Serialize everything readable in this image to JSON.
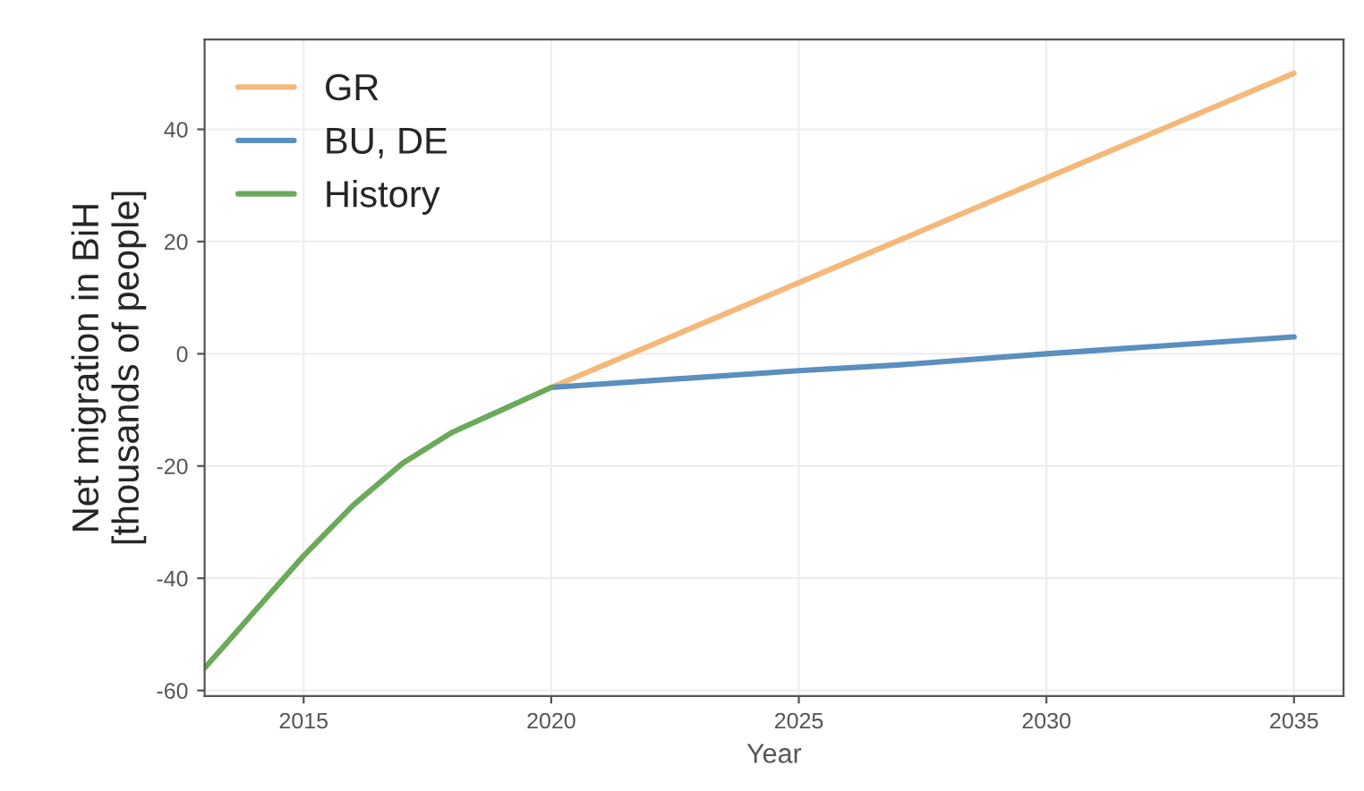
{
  "chart_data": {
    "type": "line",
    "xlabel": "Year",
    "ylabel": "Net migration in BiH\n[thousands of people]",
    "xlim": [
      2013,
      2036
    ],
    "xticks": [
      2015,
      2020,
      2025,
      2030,
      2035
    ],
    "ylim": [
      -61,
      56
    ],
    "yticks": [
      -60,
      -40,
      -20,
      0,
      20,
      40
    ],
    "grid": true,
    "legend": "top left",
    "line_style": "solid",
    "marker": "none",
    "series": [
      {
        "name": "GR",
        "color": "#f5b87a",
        "x": [
          2020,
          2035
        ],
        "values": [
          -6,
          50
        ]
      },
      {
        "name": "BU, DE",
        "color": "#5a8fbf",
        "x": [
          2020,
          2025,
          2027,
          2030,
          2035
        ],
        "values": [
          -6,
          -3,
          -2,
          0,
          3
        ]
      },
      {
        "name": "History",
        "color": "#6aaa5a",
        "x": [
          2013,
          2014,
          2015,
          2016,
          2017,
          2018,
          2019,
          2020
        ],
        "values": [
          -56,
          -46,
          -36,
          -27,
          -19.5,
          -14,
          -10,
          -6
        ]
      }
    ]
  }
}
